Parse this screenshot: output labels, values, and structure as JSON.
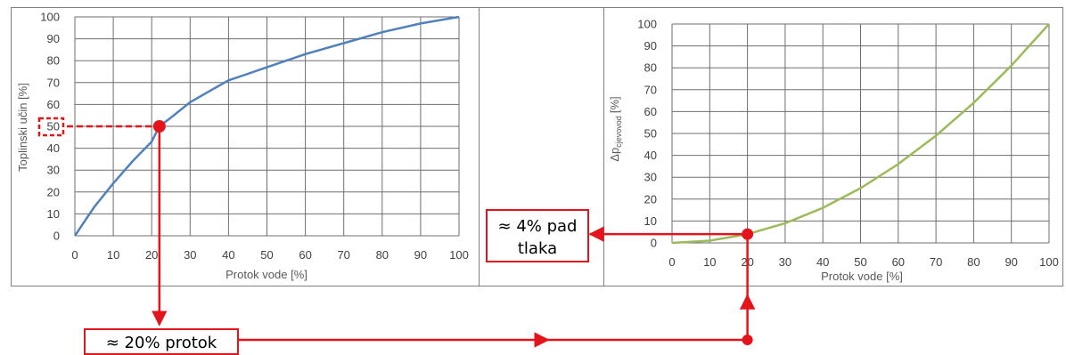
{
  "chart_data": [
    {
      "type": "line",
      "xlabel": "Protok vode [%]",
      "ylabel": "Toplinski učin [%]",
      "xlim": [
        0,
        100
      ],
      "ylim": [
        0,
        100
      ],
      "x_ticks": [
        "0",
        "10",
        "20",
        "30",
        "40",
        "50",
        "60",
        "70",
        "80",
        "90",
        "100"
      ],
      "y_ticks": [
        "0",
        "10",
        "20",
        "30",
        "40",
        "50",
        "60",
        "70",
        "80",
        "90",
        "100"
      ],
      "grid": true,
      "series": [
        {
          "color": "#4f81bd",
          "x": [
            0,
            5,
            10,
            15,
            20,
            22,
            25,
            30,
            35,
            40,
            45,
            50,
            60,
            70,
            80,
            90,
            100
          ],
          "y": [
            0,
            13,
            24,
            34,
            43,
            50,
            54,
            61,
            66,
            71,
            74,
            77,
            83,
            88,
            93,
            97,
            100
          ]
        }
      ],
      "marker": {
        "x": 22,
        "y": 50,
        "color": "#e3141b"
      }
    },
    {
      "type": "line",
      "xlabel": "Protok vode [%]",
      "ylabel": "Δp",
      "ylabel_sub": "cjevovod",
      "ylabel_unit": "[%]",
      "xlim": [
        0,
        100
      ],
      "ylim": [
        0,
        100
      ],
      "x_ticks": [
        "0",
        "10",
        "20",
        "30",
        "40",
        "50",
        "60",
        "70",
        "80",
        "90",
        "100"
      ],
      "y_ticks": [
        "0",
        "10",
        "20",
        "30",
        "40",
        "50",
        "60",
        "70",
        "80",
        "90",
        "100"
      ],
      "grid": true,
      "series": [
        {
          "color": "#9bbb59",
          "x": [
            0,
            10,
            20,
            30,
            40,
            50,
            60,
            70,
            80,
            90,
            100
          ],
          "y": [
            0,
            1,
            4,
            9,
            16,
            25,
            36,
            49,
            64,
            81,
            100
          ]
        }
      ],
      "marker": {
        "x": 20,
        "y": 4,
        "color": "#e3141b"
      }
    }
  ],
  "annotations": {
    "left_highlight": "50",
    "flow_label": "≈ 20% protok",
    "pressure_label_line1": "≈ 4% pad",
    "pressure_label_line2": "tlaka",
    "accent_color": "#e3141b"
  }
}
